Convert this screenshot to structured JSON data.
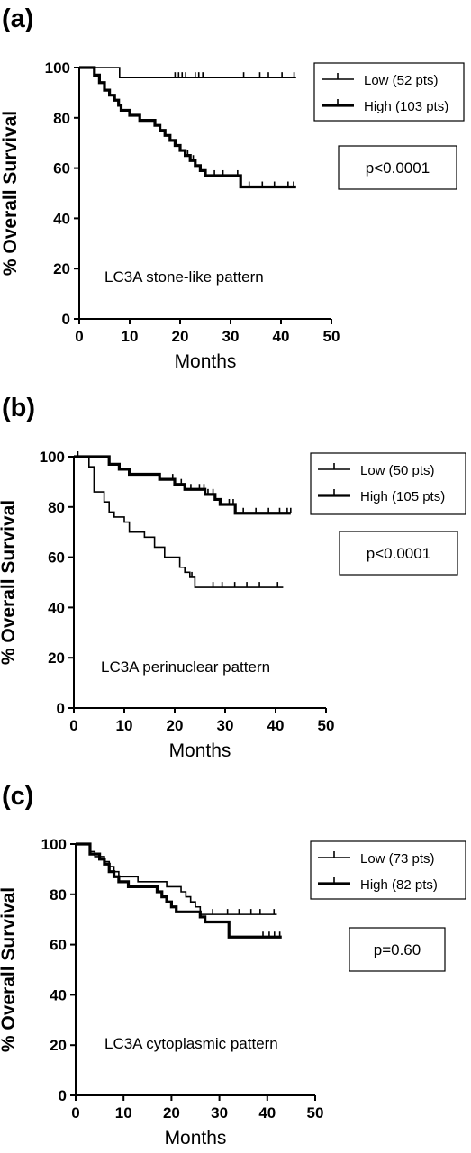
{
  "chart_data": [
    {
      "panel_label": "(a)",
      "type": "line",
      "subtype": "kaplan-meier",
      "xlabel": "Months",
      "ylabel": "% Overall Survival",
      "xlim": [
        0,
        50
      ],
      "ylim": [
        0,
        100
      ],
      "x_ticks": [
        0,
        10,
        20,
        30,
        40,
        50
      ],
      "y_ticks": [
        0,
        20,
        40,
        60,
        80,
        100
      ],
      "annotation": "LC3A stone-like pattern",
      "p_value": "p<0.0001",
      "series": [
        {
          "name": "Low (52 pts)",
          "color": "#000000",
          "weight": "thin",
          "steps": [
            [
              0,
              100
            ],
            [
              8,
              96
            ],
            [
              43,
              96
            ]
          ],
          "censored": [
            19,
            19.7,
            20.4,
            21.1,
            23,
            23.7,
            24.5,
            32.6,
            35.8,
            37.5,
            40.2,
            42.6
          ]
        },
        {
          "name": "High (103 pts)",
          "color": "#000000",
          "weight": "thick",
          "steps": [
            [
              0,
              100
            ],
            [
              3,
              97
            ],
            [
              4,
              94
            ],
            [
              5,
              91
            ],
            [
              6,
              89
            ],
            [
              7,
              87
            ],
            [
              7.8,
              85
            ],
            [
              8.3,
              83
            ],
            [
              10,
              81
            ],
            [
              12,
              79
            ],
            [
              15,
              77
            ],
            [
              16,
              75
            ],
            [
              17,
              73
            ],
            [
              18,
              71
            ],
            [
              19,
              69
            ],
            [
              20,
              67
            ],
            [
              21,
              65
            ],
            [
              22,
              63
            ],
            [
              23,
              61
            ],
            [
              24,
              59
            ],
            [
              25,
              57
            ],
            [
              32,
              52.5
            ],
            [
              43,
              52.5
            ]
          ],
          "censored": [
            19.3,
            21.5,
            22.6,
            26.8,
            28.5,
            31.4,
            33.7,
            36.3,
            38.7,
            41.4,
            42.5
          ]
        }
      ]
    },
    {
      "panel_label": "(b)",
      "type": "line",
      "subtype": "kaplan-meier",
      "xlabel": "Months",
      "ylabel": "% Overall Survival",
      "xlim": [
        0,
        50
      ],
      "ylim": [
        0,
        100
      ],
      "x_ticks": [
        0,
        10,
        20,
        30,
        40,
        50
      ],
      "y_ticks": [
        0,
        20,
        40,
        60,
        80,
        100
      ],
      "annotation": "LC3A perinuclear pattern",
      "p_value": "p<0.0001",
      "series": [
        {
          "name": "Low (50 pts)",
          "color": "#000000",
          "weight": "thin",
          "steps": [
            [
              0,
              100
            ],
            [
              3,
              96
            ],
            [
              4,
              86
            ],
            [
              6,
              82
            ],
            [
              7,
              78
            ],
            [
              8,
              76
            ],
            [
              10,
              74
            ],
            [
              11,
              70
            ],
            [
              14,
              68
            ],
            [
              16,
              64
            ],
            [
              18,
              60
            ],
            [
              21,
              56
            ],
            [
              22,
              54
            ],
            [
              23,
              52
            ],
            [
              24,
              48
            ],
            [
              41.5,
              48
            ]
          ],
          "censored": [
            0.8,
            23.4,
            27.6,
            29.4,
            31.9,
            34.3,
            36.8,
            40.4
          ]
        },
        {
          "name": "High (105 pts)",
          "color": "#000000",
          "weight": "thick",
          "steps": [
            [
              0,
              100
            ],
            [
              7,
              97
            ],
            [
              9,
              95
            ],
            [
              11,
              93
            ],
            [
              17,
              91
            ],
            [
              20,
              89
            ],
            [
              22,
              87
            ],
            [
              26,
              85
            ],
            [
              28,
              83
            ],
            [
              29,
              81
            ],
            [
              32,
              77.5
            ],
            [
              43,
              77.5
            ]
          ],
          "censored": [
            19.6,
            21.3,
            23.2,
            24.9,
            25.8,
            26.6,
            27.6,
            30.8,
            31.6,
            33.6,
            36.1,
            38.6,
            40.8,
            42.3,
            43
          ]
        }
      ]
    },
    {
      "panel_label": "(c)",
      "type": "line",
      "subtype": "kaplan-meier",
      "xlabel": "Months",
      "ylabel": "% Overall Survival",
      "xlim": [
        0,
        50
      ],
      "ylim": [
        0,
        100
      ],
      "x_ticks": [
        0,
        10,
        20,
        30,
        40,
        50
      ],
      "y_ticks": [
        0,
        20,
        40,
        60,
        80,
        100
      ],
      "annotation": "LC3A cytoplasmic pattern",
      "p_value": "p=0.60",
      "series": [
        {
          "name": "Low (73 pts)",
          "color": "#000000",
          "weight": "thin",
          "steps": [
            [
              0,
              100
            ],
            [
              3,
              97
            ],
            [
              4,
              95
            ],
            [
              6,
              93
            ],
            [
              7,
              91
            ],
            [
              8,
              89
            ],
            [
              9,
              87
            ],
            [
              13,
              85
            ],
            [
              19,
              83
            ],
            [
              22,
              81
            ],
            [
              23,
              79
            ],
            [
              24,
              77
            ],
            [
              25,
              75
            ],
            [
              26,
              72
            ],
            [
              42,
              72
            ]
          ],
          "censored": [
            28.6,
            31.7,
            34.1,
            36.6,
            38.5,
            41.4
          ]
        },
        {
          "name": "High (82 pts)",
          "color": "#000000",
          "weight": "thick",
          "steps": [
            [
              0,
              100
            ],
            [
              3,
              96
            ],
            [
              5,
              94
            ],
            [
              6,
              92
            ],
            [
              7,
              89
            ],
            [
              8,
              87
            ],
            [
              9,
              85
            ],
            [
              11,
              83
            ],
            [
              17,
              81
            ],
            [
              18,
              79
            ],
            [
              19,
              77
            ],
            [
              20,
              75
            ],
            [
              21,
              73
            ],
            [
              26,
              71
            ],
            [
              27,
              69
            ],
            [
              32,
              63
            ],
            [
              43,
              63
            ]
          ],
          "censored": [
            39.1,
            40.4,
            41.5,
            42.6
          ]
        }
      ]
    }
  ]
}
